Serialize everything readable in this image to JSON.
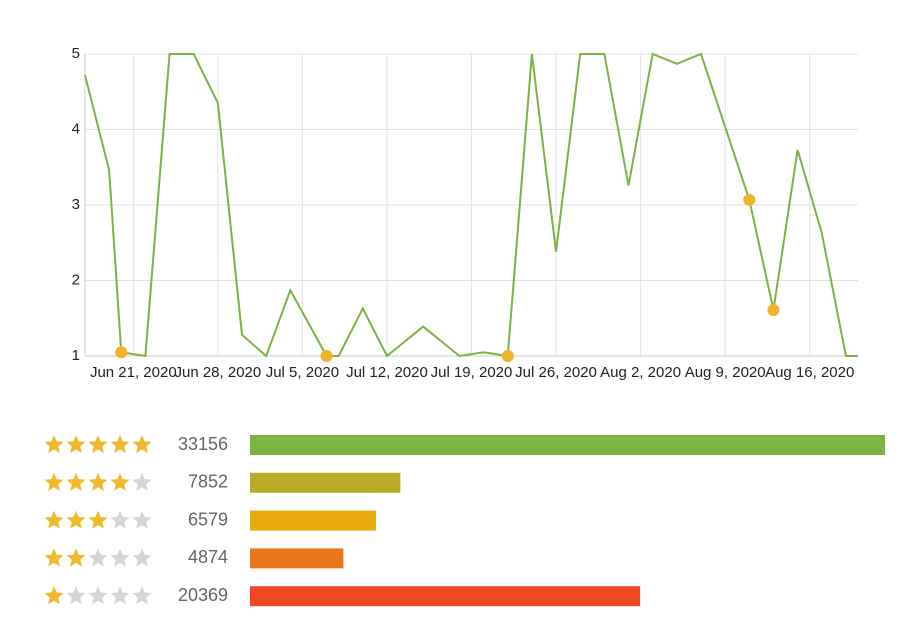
{
  "chart_data": [
    {
      "type": "line",
      "x": [
        "2020-06-17",
        "2020-06-19",
        "2020-06-20",
        "2020-06-22",
        "2020-06-24",
        "2020-06-26",
        "2020-06-28",
        "2020-06-30",
        "2020-07-02",
        "2020-07-04",
        "2020-07-07",
        "2020-07-08",
        "2020-07-10",
        "2020-07-12",
        "2020-07-15",
        "2020-07-18",
        "2020-07-20",
        "2020-07-22",
        "2020-07-24",
        "2020-07-26",
        "2020-07-28",
        "2020-07-30",
        "2020-08-01",
        "2020-08-03",
        "2020-08-05",
        "2020-08-07",
        "2020-08-11",
        "2020-08-13",
        "2020-08-15",
        "2020-08-17",
        "2020-08-19",
        "2020-08-20"
      ],
      "series": [
        {
          "color": "#7cb342",
          "values": [
            4.72,
            3.46,
            1.05,
            1,
            5,
            5,
            4.35,
            1.28,
            1,
            1.87,
            1,
            1,
            1.63,
            1,
            1.39,
            1,
            1.05,
            1,
            5,
            2.38,
            5,
            5,
            3.26,
            5,
            4.87,
            5,
            3.07,
            1.61,
            3.73,
            2.63,
            1,
            1
          ]
        }
      ],
      "markers": {
        "color": "#f0b429",
        "x": [
          "2020-06-20",
          "2020-07-07",
          "2020-07-22",
          "2020-08-11",
          "2020-08-13"
        ],
        "values": [
          1.05,
          1,
          1,
          3.07,
          1.61
        ]
      },
      "xlim": [
        "2020-06-17",
        "2020-08-20"
      ],
      "xticks": [
        {
          "value": "2020-06-21",
          "label": "Jun 21, 2020"
        },
        {
          "value": "2020-06-28",
          "label": "Jun 28, 2020"
        },
        {
          "value": "2020-07-05",
          "label": "Jul 5, 2020"
        },
        {
          "value": "2020-07-12",
          "label": "Jul 12, 2020"
        },
        {
          "value": "2020-07-19",
          "label": "Jul 19, 2020"
        },
        {
          "value": "2020-07-26",
          "label": "Jul 26, 2020"
        },
        {
          "value": "2020-08-02",
          "label": "Aug 2, 2020"
        },
        {
          "value": "2020-08-09",
          "label": "Aug 9, 2020"
        },
        {
          "value": "2020-08-16",
          "label": "Aug 16, 2020"
        }
      ],
      "ylim": [
        1,
        5
      ],
      "yticks": [
        1,
        2,
        3,
        4,
        5
      ],
      "grid": true
    },
    {
      "type": "hbar",
      "stars": [
        5,
        4,
        3,
        2,
        1
      ],
      "values": [
        33156,
        7852,
        6579,
        4874,
        20369
      ],
      "colors": [
        "#7cb342",
        "#b8ab27",
        "#e8a90d",
        "#eb761a",
        "#ee4724"
      ]
    }
  ]
}
